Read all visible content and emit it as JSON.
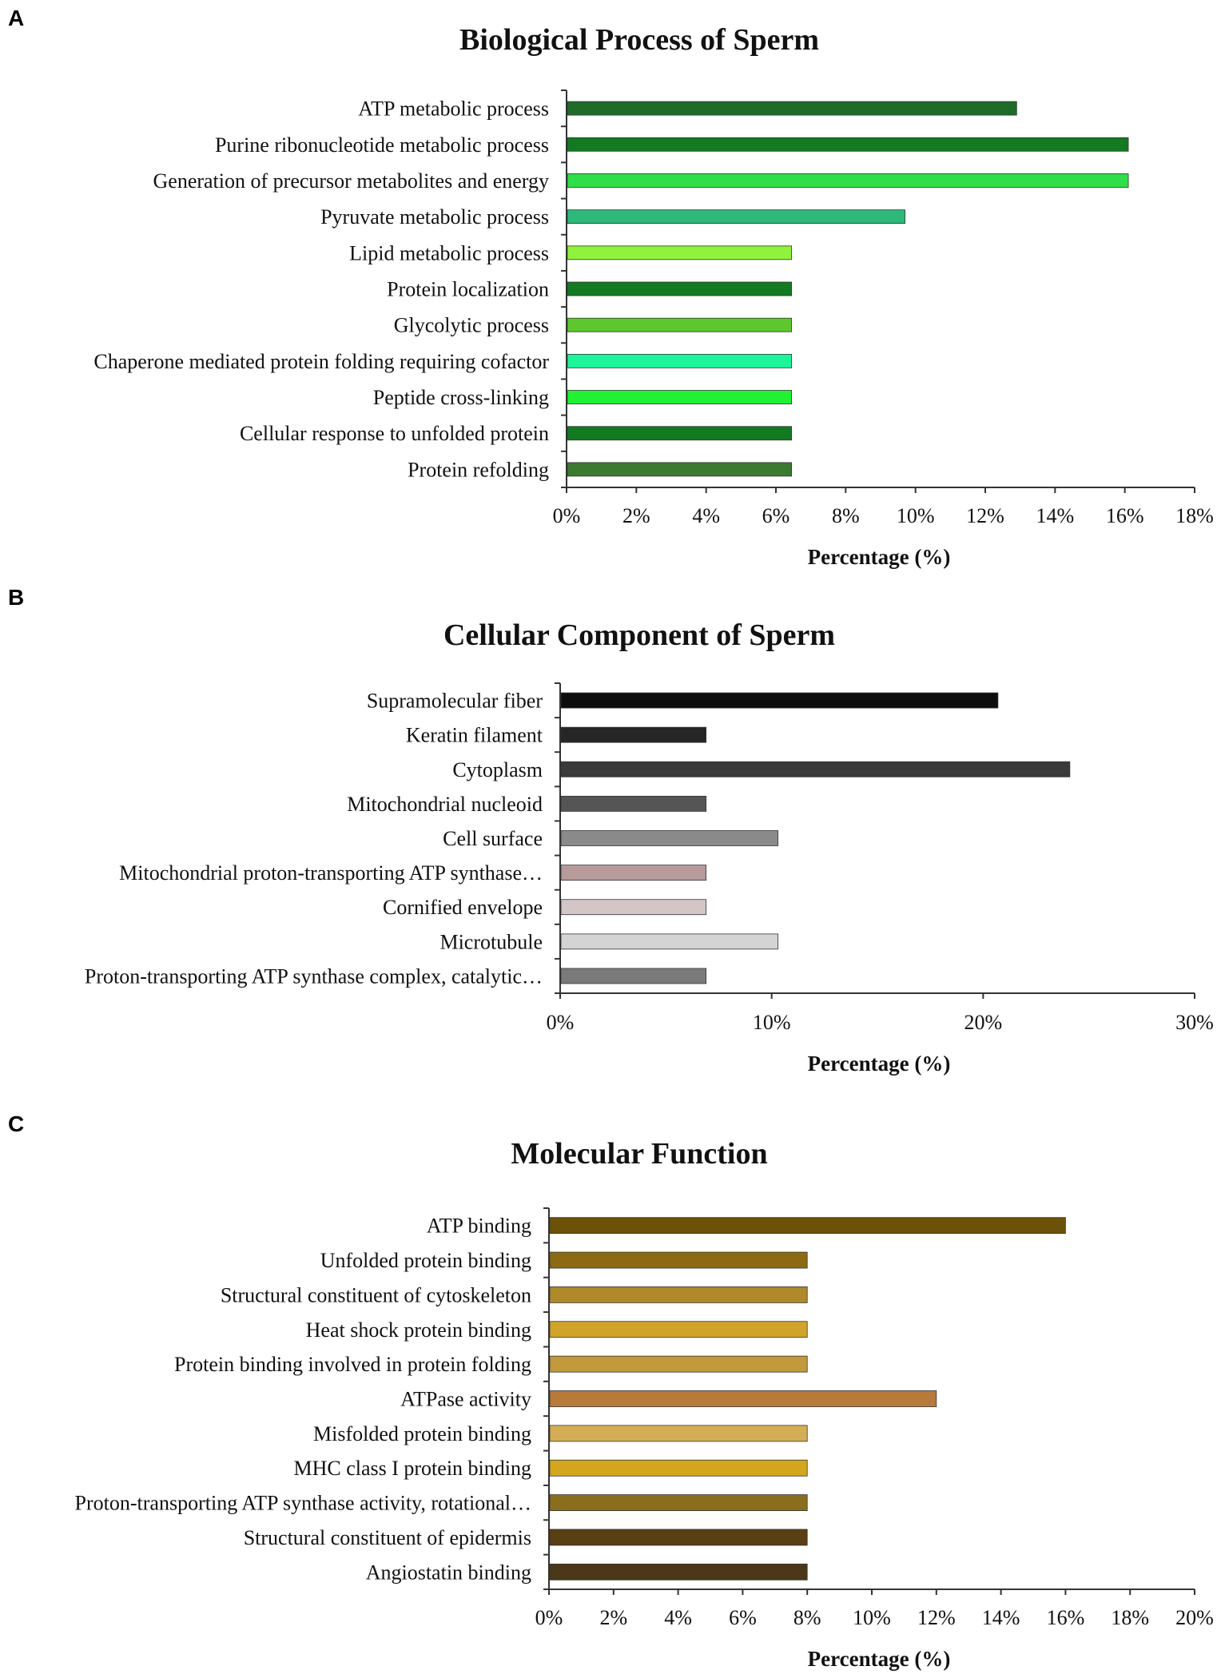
{
  "chart_data": [
    {
      "type": "bar",
      "orientation": "horizontal",
      "panel": "A",
      "title": "Biological Process of Sperm",
      "xlabel": "Percentage (%)",
      "ylabel": "",
      "xlim": [
        0,
        18
      ],
      "tick_step": 2,
      "tick_labels": [
        "0%",
        "2%",
        "4%",
        "6%",
        "8%",
        "10%",
        "12%",
        "14%",
        "16%",
        "18%"
      ],
      "categories": [
        "ATP metabolic process",
        "Purine ribonucleotide metabolic process",
        "Generation of precursor metabolites and energy",
        "Pyruvate metabolic process",
        "Lipid metabolic process",
        "Protein localization",
        "Glycolytic process",
        "Chaperone mediated protein folding requiring cofactor",
        "Peptide cross-linking",
        "Cellular response to unfolded protein",
        "Protein refolding"
      ],
      "values": [
        12.9,
        16.1,
        16.1,
        9.7,
        6.45,
        6.45,
        6.45,
        6.45,
        6.45,
        6.45,
        6.45
      ],
      "colors": [
        "#1e6b2a",
        "#137a22",
        "#2fde48",
        "#2eb87a",
        "#8ff23c",
        "#137a22",
        "#5fc72e",
        "#1ef59a",
        "#1ff233",
        "#137a22",
        "#3c7a32"
      ],
      "grid": false
    },
    {
      "type": "bar",
      "orientation": "horizontal",
      "panel": "B",
      "title": "Cellular Component of Sperm",
      "xlabel": "Percentage (%)",
      "ylabel": "",
      "xlim": [
        0,
        30
      ],
      "tick_step": 10,
      "tick_labels": [
        "0%",
        "10%",
        "20%",
        "30%"
      ],
      "categories": [
        "Supramolecular fiber",
        "Keratin filament",
        "Cytoplasm",
        "Mitochondrial nucleoid",
        "Cell surface",
        "Mitochondrial proton-transporting ATP synthase…",
        "Cornified envelope",
        "Microtubule",
        "Proton-transporting ATP synthase complex, catalytic…"
      ],
      "values": [
        20.7,
        6.9,
        24.1,
        6.9,
        10.3,
        6.9,
        6.9,
        10.3,
        6.9
      ],
      "colors": [
        "#0d0d0d",
        "#262626",
        "#3a3a3a",
        "#555555",
        "#8a8a8a",
        "#b89a9a",
        "#d2c6c6",
        "#d4d4d4",
        "#7a7a7a"
      ],
      "grid": false
    },
    {
      "type": "bar",
      "orientation": "horizontal",
      "panel": "C",
      "title": "Molecular Function",
      "xlabel": "Percentage (%)",
      "ylabel": "",
      "xlim": [
        0,
        20
      ],
      "tick_step": 2,
      "tick_labels": [
        "0%",
        "2%",
        "4%",
        "6%",
        "8%",
        "10%",
        "12%",
        "14%",
        "16%",
        "18%",
        "20%"
      ],
      "categories": [
        "ATP binding",
        "Unfolded protein binding",
        "Structural constituent of cytoskeleton",
        "Heat shock protein binding",
        "Protein binding involved in protein folding",
        "ATPase activity",
        "Misfolded protein binding",
        "MHC class I protein binding",
        "Proton-transporting ATP synthase activity, rotational…",
        "Structural constituent of epidermis",
        "Angiostatin binding"
      ],
      "values": [
        16,
        8,
        8,
        8,
        8,
        12,
        8,
        8,
        8,
        8,
        8
      ],
      "colors": [
        "#6b5208",
        "#8c6a14",
        "#b08a2a",
        "#d0a42a",
        "#c29a3c",
        "#b87a3a",
        "#d4ae55",
        "#d4a61e",
        "#8a6e1e",
        "#5a3e14",
        "#4a3818"
      ],
      "grid": false
    }
  ]
}
